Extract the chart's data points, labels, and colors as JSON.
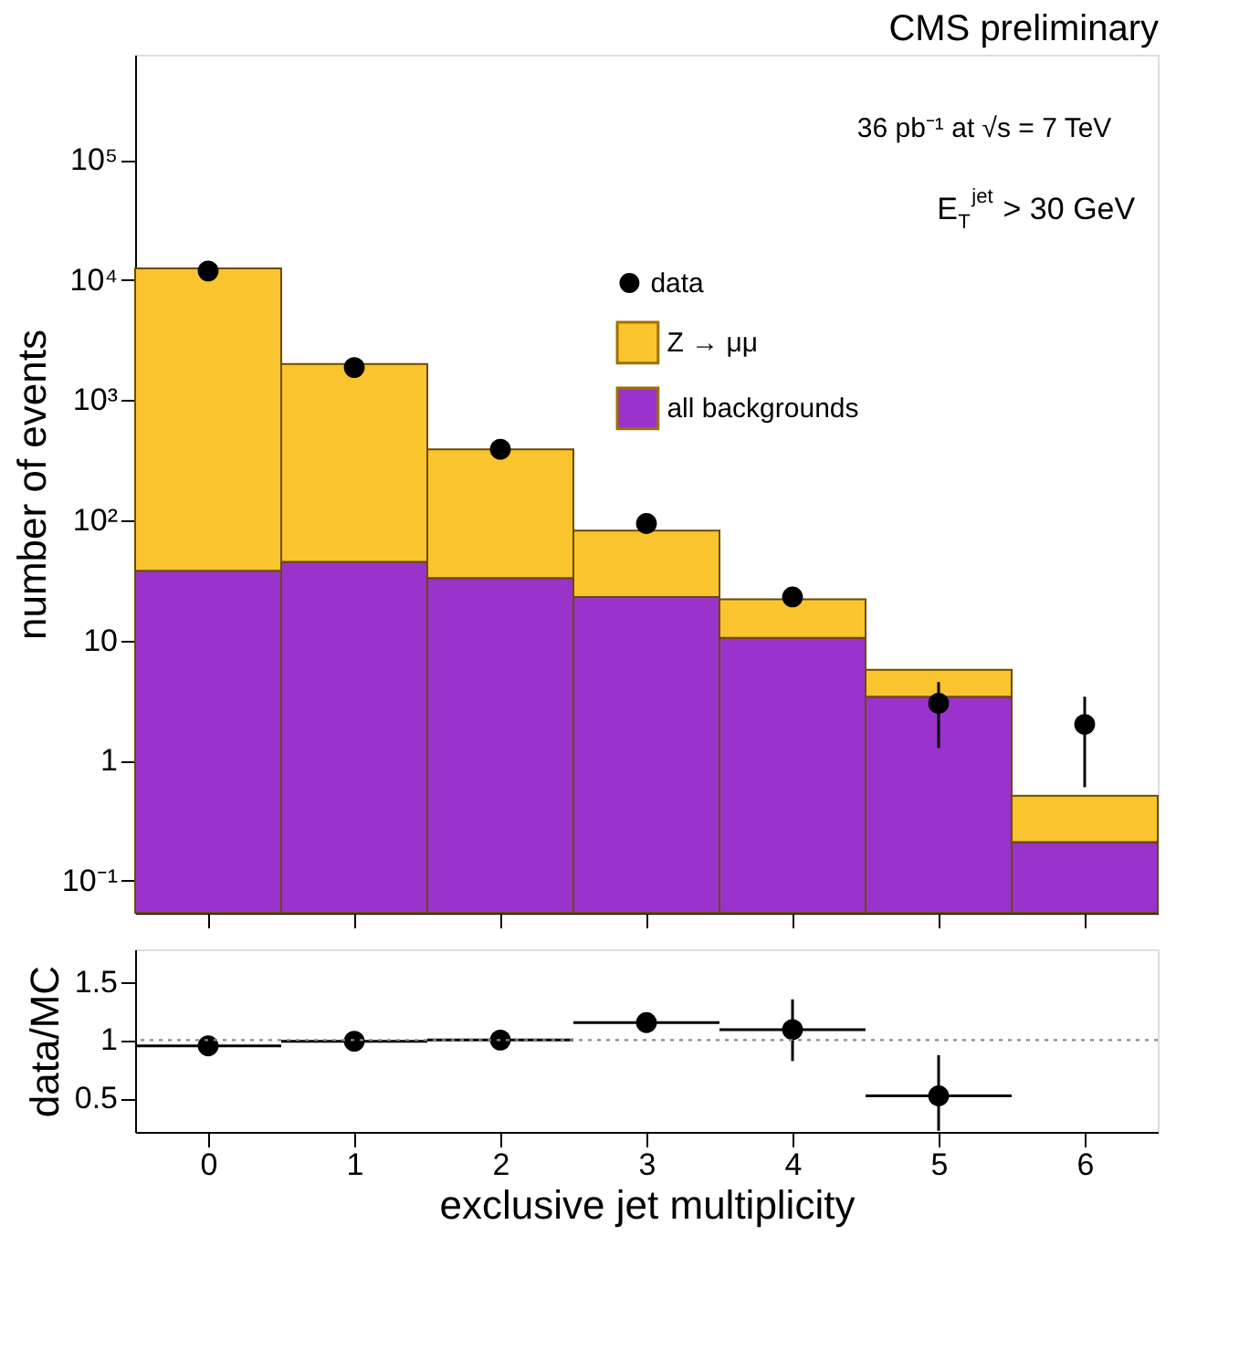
{
  "chart_data": [
    {
      "type": "bar",
      "title": "CMS preliminary",
      "ylabel": "number of events",
      "stacked": true,
      "log": true,
      "legend": "top right",
      "tick_labels": "y",
      "x": [
        0,
        1,
        2,
        3,
        4,
        5,
        6
      ],
      "xlim": [
        -0.5,
        6.5
      ],
      "xticks": [
        {
          "value": 0,
          "label": null
        },
        {
          "value": 1,
          "label": null
        },
        {
          "value": 2,
          "label": null
        },
        {
          "value": 3,
          "label": null
        },
        {
          "value": 4,
          "label": null
        },
        {
          "value": 5,
          "label": null
        },
        {
          "value": 6,
          "label": null
        }
      ],
      "ylim": [
        0.054,
        750000
      ],
      "yticks": [
        {
          "value": 0.1,
          "label": "10⁻¹"
        },
        1,
        10,
        {
          "value": 100,
          "label": "10²"
        },
        {
          "value": 1000,
          "label": "10³"
        },
        {
          "value": 10000,
          "label": "10⁴"
        },
        {
          "value": 100000,
          "label": "10⁵"
        }
      ],
      "annotations": [
        "36 pb⁻¹ at √s = 7 TeV",
        "E$_{T}$$^{jet}$ > 30 GeV"
      ],
      "series": [
        {
          "name": "all backgrounds",
          "type": "bar",
          "color": "#9933cc",
          "values": [
            38,
            45,
            33,
            23,
            10.5,
            3.4,
            0.21
          ]
        },
        {
          "name": "Z → μμ",
          "type": "bar",
          "color": "#f9c42e",
          "values": [
            12460,
            1955,
            357,
            59,
            11.5,
            2.3,
            0.3
          ]
        },
        {
          "name": "data",
          "type": "scatter",
          "marker": "circle",
          "color": "#000000",
          "values": [
            11900,
            1870,
            390,
            94,
            23,
            3.0,
            2.0
          ],
          "errors": [
            null,
            null,
            null,
            null,
            null,
            [
              1.27,
              4.5
            ],
            [
              0.6,
              3.4
            ]
          ]
        }
      ]
    },
    {
      "type": "scatter",
      "xlabel": "exclusive jet multiplicity",
      "ylabel": "data/MC",
      "marker": "circle",
      "x": [
        0,
        1,
        2,
        3,
        4,
        5
      ],
      "xlim": [
        -0.5,
        6.5
      ],
      "xticks": [
        0,
        1,
        2,
        3,
        4,
        5,
        6
      ],
      "ylim": [
        0.21,
        1.78
      ],
      "yticks": [
        0.5,
        1,
        1.5
      ],
      "ref_lines": [
        {
          "axis": "y",
          "value": 1,
          "line_style": "dotted",
          "color": "#888888"
        }
      ],
      "series": [
        {
          "color": "#000000",
          "values": [
            0.95,
            0.99,
            1.0,
            1.15,
            1.09,
            0.52
          ],
          "errors": [
            null,
            null,
            null,
            null,
            [
              0.82,
              1.35
            ],
            [
              0.22,
              0.87
            ]
          ],
          "xerrors": [
            0.5,
            0.5,
            0.5,
            0.5,
            0.5,
            0.5
          ]
        }
      ]
    }
  ]
}
